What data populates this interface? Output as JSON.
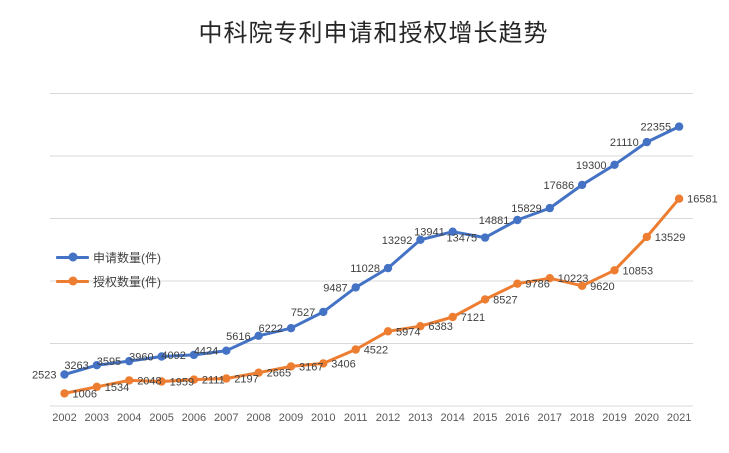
{
  "chart_data": {
    "type": "line",
    "title": "中科院专利申请和授权增长趋势",
    "categories": [
      "2002",
      "2003",
      "2004",
      "2005",
      "2006",
      "2007",
      "2008",
      "2009",
      "2010",
      "2011",
      "2012",
      "2013",
      "2014",
      "2015",
      "2016",
      "2017",
      "2018",
      "2019",
      "2020",
      "2021"
    ],
    "series": [
      {
        "name": "申请数量(件)",
        "color": "#4472C4",
        "label_position": "left",
        "values": [
          2523,
          3263,
          3595,
          3960,
          4092,
          4424,
          5616,
          6222,
          7527,
          9487,
          11028,
          13292,
          13941,
          13475,
          14881,
          15829,
          17686,
          19300,
          21110,
          22355
        ]
      },
      {
        "name": "授权数量(件)",
        "color": "#ED7D31",
        "label_position": "right",
        "values": [
          1006,
          1534,
          2048,
          1959,
          2111,
          2197,
          2665,
          3167,
          3406,
          4522,
          5974,
          6383,
          7121,
          8527,
          9786,
          10223,
          9620,
          10853,
          13529,
          16581
        ]
      }
    ],
    "xlabel": "",
    "ylabel": "",
    "ylim": [
      0,
      25000
    ],
    "gridline_values": [
      0,
      5000,
      10000,
      15000,
      20000,
      25000
    ],
    "grid": true,
    "y_axis_labels_visible": false,
    "legend_position": "middle-left-overlay",
    "data_labels_visible": true,
    "style": {
      "grid_color": "#D9D9D9",
      "axis_line_color": "#D9D9D9",
      "tick_label_color": "#595959",
      "data_label_color": "#404040",
      "title_color": "#262626",
      "background": "#FFFFFF"
    }
  }
}
